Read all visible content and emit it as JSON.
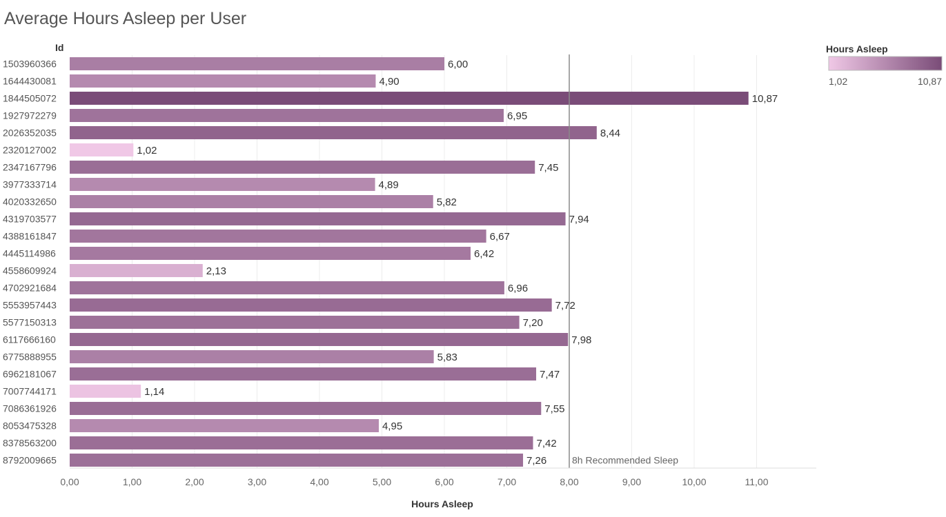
{
  "chart_data": {
    "type": "bar",
    "orientation": "horizontal",
    "title": "Average Hours Asleep per User",
    "ylabel": "Id",
    "xlabel": "Hours Asleep",
    "xlim": [
      0,
      12
    ],
    "x_ticks": [
      "0,00",
      "1,00",
      "2,00",
      "3,00",
      "4,00",
      "5,00",
      "6,00",
      "7,00",
      "8,00",
      "9,00",
      "10,00",
      "11,00"
    ],
    "categories": [
      "1503960366",
      "1644430081",
      "1844505072",
      "1927972279",
      "2026352035",
      "2320127002",
      "2347167796",
      "3977333714",
      "4020332650",
      "4319703577",
      "4388161847",
      "4445114986",
      "4558609924",
      "4702921684",
      "5553957443",
      "5577150313",
      "6117666160",
      "6775888955",
      "6962181067",
      "7007744171",
      "7086361926",
      "8053475328",
      "8378563200",
      "8792009665"
    ],
    "values": [
      6.0,
      4.9,
      10.87,
      6.95,
      8.44,
      1.02,
      7.45,
      4.89,
      5.82,
      7.94,
      6.67,
      6.42,
      2.13,
      6.96,
      7.72,
      7.2,
      7.98,
      5.83,
      7.47,
      1.14,
      7.55,
      4.95,
      7.42,
      7.26
    ],
    "value_labels": [
      "6,00",
      "4,90",
      "10,87",
      "6,95",
      "8,44",
      "1,02",
      "7,45",
      "4,89",
      "5,82",
      "7,94",
      "6,67",
      "6,42",
      "2,13",
      "6,96",
      "7,72",
      "7,20",
      "7,98",
      "5,83",
      "7,47",
      "1,14",
      "7,55",
      "4,95",
      "7,42",
      "7,26"
    ],
    "reference_line": {
      "value": 8,
      "label": "8h Recommended Sleep"
    },
    "grid": true,
    "legend": {
      "title": "Hours Asleep",
      "min_label": "1,02",
      "max_label": "10,87",
      "placement": "top-right",
      "color_low": "#f0c8e6",
      "color_high": "#7a4c78"
    }
  }
}
